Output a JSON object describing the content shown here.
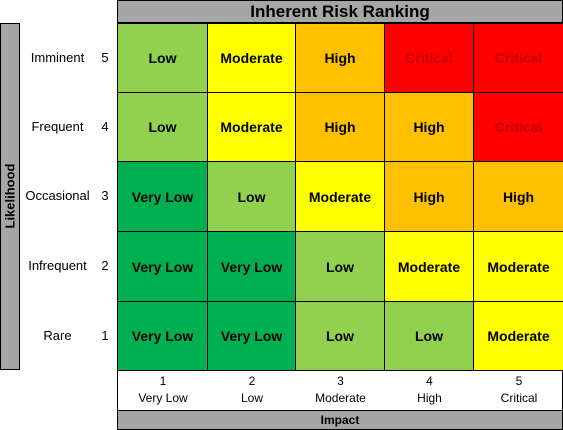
{
  "title": "Inherent Risk Ranking",
  "y_axis_label": "Likelihood",
  "x_axis_label": "Impact",
  "colors": {
    "Very Low": "#00b050",
    "Low": "#92d050",
    "Moderate": "#ffff00",
    "High": "#ffc000",
    "Critical": "#ff0000",
    "header_gray": "#a6a6a6"
  },
  "text_colors": {
    "Critical": "#c00000"
  },
  "rows": [
    {
      "name": "Imminent",
      "num": "5",
      "cells": [
        "Low",
        "Moderate",
        "High",
        "Critical",
        "Critical"
      ]
    },
    {
      "name": "Frequent",
      "num": "4",
      "cells": [
        "Low",
        "Moderate",
        "High",
        "High",
        "Critical"
      ]
    },
    {
      "name": "Occasional",
      "num": "3",
      "cells": [
        "Very Low",
        "Low",
        "Moderate",
        "High",
        "High"
      ]
    },
    {
      "name": "Infrequent",
      "num": "2",
      "cells": [
        "Very Low",
        "Very Low",
        "Low",
        "Moderate",
        "Moderate"
      ]
    },
    {
      "name": "Rare",
      "num": "1",
      "cells": [
        "Very Low",
        "Very Low",
        "Low",
        "Low",
        "Moderate"
      ]
    }
  ],
  "columns": [
    {
      "num": "1",
      "name": "Very Low"
    },
    {
      "num": "2",
      "name": "Low"
    },
    {
      "num": "3",
      "name": "Moderate"
    },
    {
      "num": "4",
      "name": "High"
    },
    {
      "num": "5",
      "name": "Critical"
    }
  ]
}
